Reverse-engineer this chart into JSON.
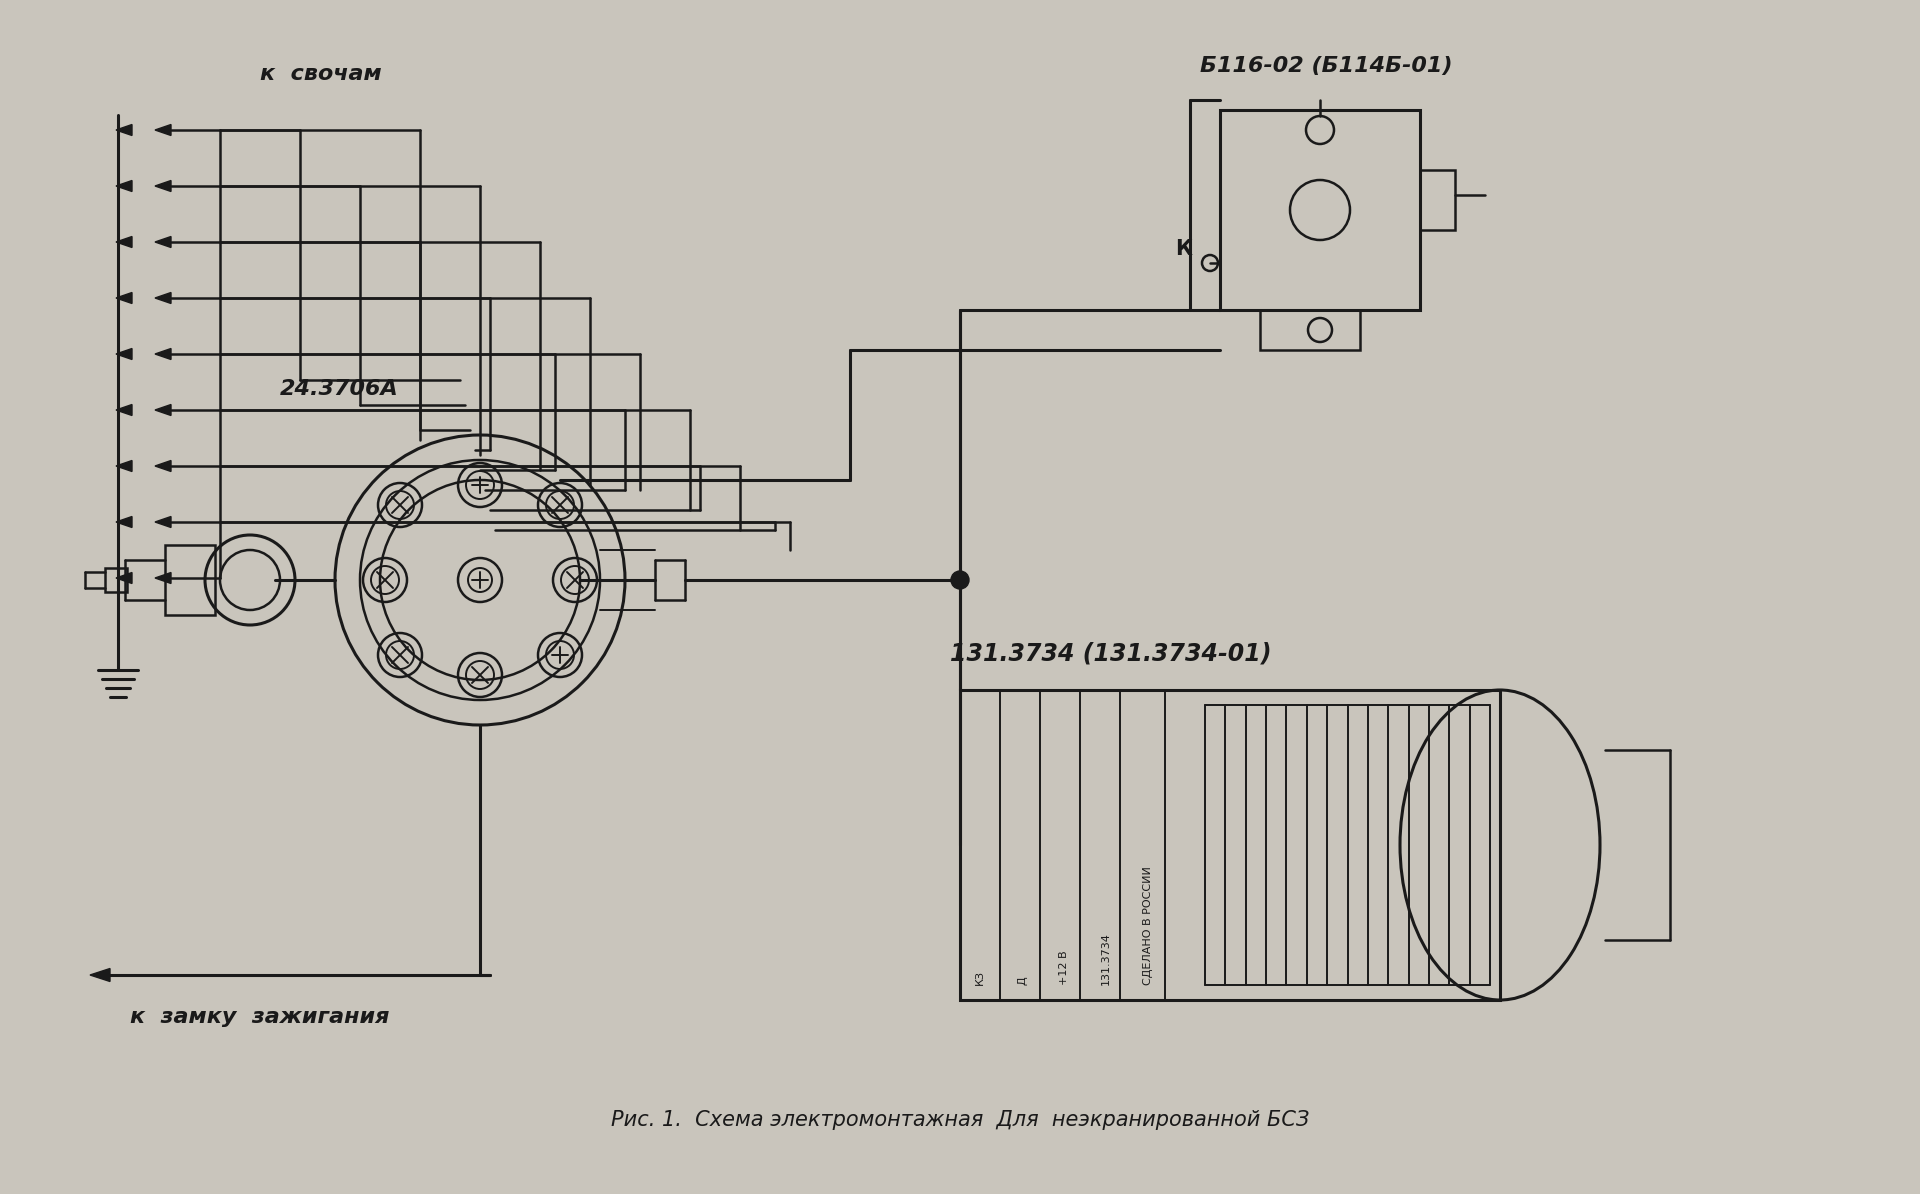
{
  "bg_color": "#c9c5bc",
  "line_color": "#1a1a1a",
  "title": "Рис. 1.  Схема электромонтажная  Для  неэкранированной БСЗ",
  "label_sparks": "к  свочам",
  "label_ignition": "к  замку  зажигания",
  "label_dist": "24.3706А",
  "label_coil": "Б116-02 (Б114Б-01)",
  "label_bsz": "131.3734 (131.3734-01)",
  "label_k": "К"
}
